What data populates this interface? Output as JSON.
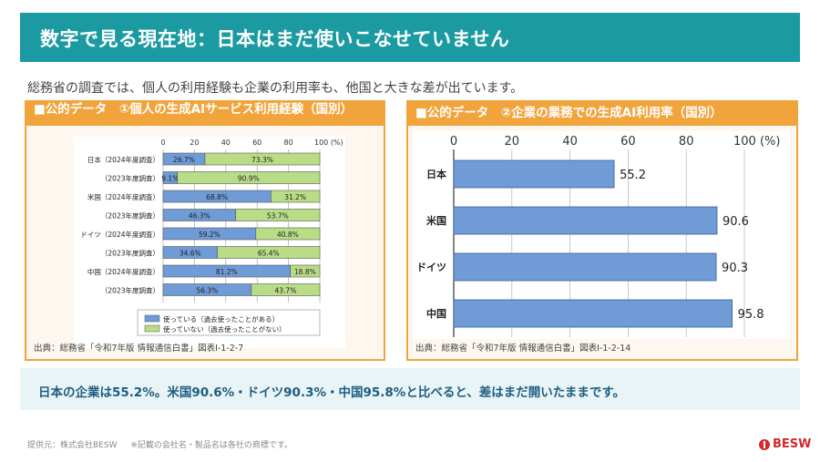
{
  "header": {
    "title": "数字で見る現在地：日本はまだ使いこなせていません"
  },
  "lead": "総務省の調査では、個人の利用経験も企業の利用率も、他国と大きな差が出ています。",
  "panel_left": {
    "title": "■公的データ　①個人の生成AIサービス利用経験（国別）",
    "source": "出典：総務省「令和7年版 情報通信白書」図表Ⅰ-1-2-7"
  },
  "panel_right": {
    "title": "■公的データ　②企業の業務での生成AI利用率（国別）",
    "source": "出典：総務省「令和7年版 情報通信白書」図表Ⅰ-1-2-14"
  },
  "summary": "日本の企業は55.2%。米国90.6%・ドイツ90.3%・中国95.8%と比べると、差はまだ開いたままです。",
  "footer": {
    "provider": "提供元：株式会社BESW",
    "note": "※記載の会社名・製品名は各社の商標です。"
  },
  "logo": {
    "text": "BESW"
  },
  "colors": {
    "teal": "#1b9aa2",
    "orange": "#f2a43c",
    "bar_blue": "#6f9bd6",
    "bar_green": "#b9dc86",
    "summary_text": "#1d5d82"
  },
  "chart_data": [
    {
      "type": "bar",
      "orientation": "horizontal",
      "stacked": true,
      "categories": [
        "日本（2024年度調査）",
        "（2023年度調査）",
        "米国（2024年度調査）",
        "（2023年度調査）",
        "ドイツ（2024年度調査）",
        "（2023年度調査）",
        "中国（2024年度調査）",
        "（2023年度調査）"
      ],
      "series": [
        {
          "name": "使っている（過去使ったことがある）",
          "values": [
            26.7,
            9.1,
            68.8,
            46.3,
            59.2,
            34.6,
            81.2,
            56.3
          ],
          "labels": [
            "26.7%",
            "9.1%",
            "68.8%",
            "46.3%",
            "59.2%",
            "34.6%",
            "81.2%",
            "56.3%"
          ]
        },
        {
          "name": "使っていない（過去使ったことがない）",
          "values": [
            73.3,
            90.9,
            31.2,
            53.7,
            40.8,
            65.4,
            18.8,
            43.7
          ],
          "labels": [
            "73.3%",
            "90.9%",
            "31.2%",
            "53.7%",
            "40.8%",
            "65.4%",
            "18.8%",
            "43.7%"
          ]
        }
      ],
      "xticks": [
        "0",
        "20",
        "40",
        "60",
        "80",
        "100 (%)"
      ],
      "xlim": [
        0,
        100
      ],
      "grid": true,
      "legend": "bottom"
    },
    {
      "type": "bar",
      "orientation": "horizontal",
      "categories": [
        "日本",
        "米国",
        "ドイツ",
        "中国"
      ],
      "values": [
        55.2,
        90.6,
        90.3,
        95.8
      ],
      "labels": [
        "55.2",
        "90.6",
        "90.3",
        "95.8"
      ],
      "xticks": [
        "0",
        "20",
        "40",
        "60",
        "80",
        "100 (%)"
      ],
      "xlim": [
        0,
        100
      ],
      "grid": true
    }
  ]
}
